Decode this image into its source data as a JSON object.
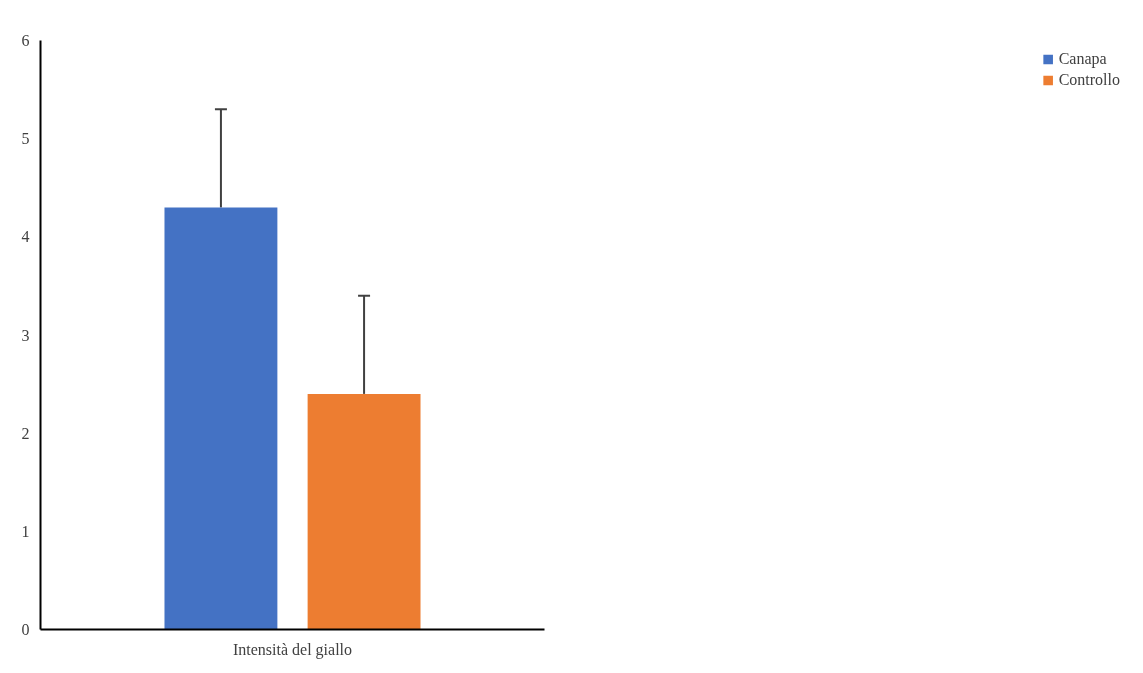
{
  "chart_data": {
    "type": "bar",
    "categories": [
      "Intensità del giallo"
    ],
    "series": [
      {
        "name": "Canapa",
        "color": "#4472c4",
        "values": [
          4.3
        ],
        "errors": [
          [
            4.3,
            5.3
          ]
        ]
      },
      {
        "name": "Controllo",
        "color": "#ed7d31",
        "values": [
          2.4
        ],
        "errors": [
          [
            2.4,
            3.4
          ]
        ]
      }
    ],
    "ylim": [
      0,
      6
    ],
    "yticks": [
      0,
      1,
      2,
      3,
      4,
      5,
      6
    ],
    "grid": false,
    "legend": "right"
  }
}
